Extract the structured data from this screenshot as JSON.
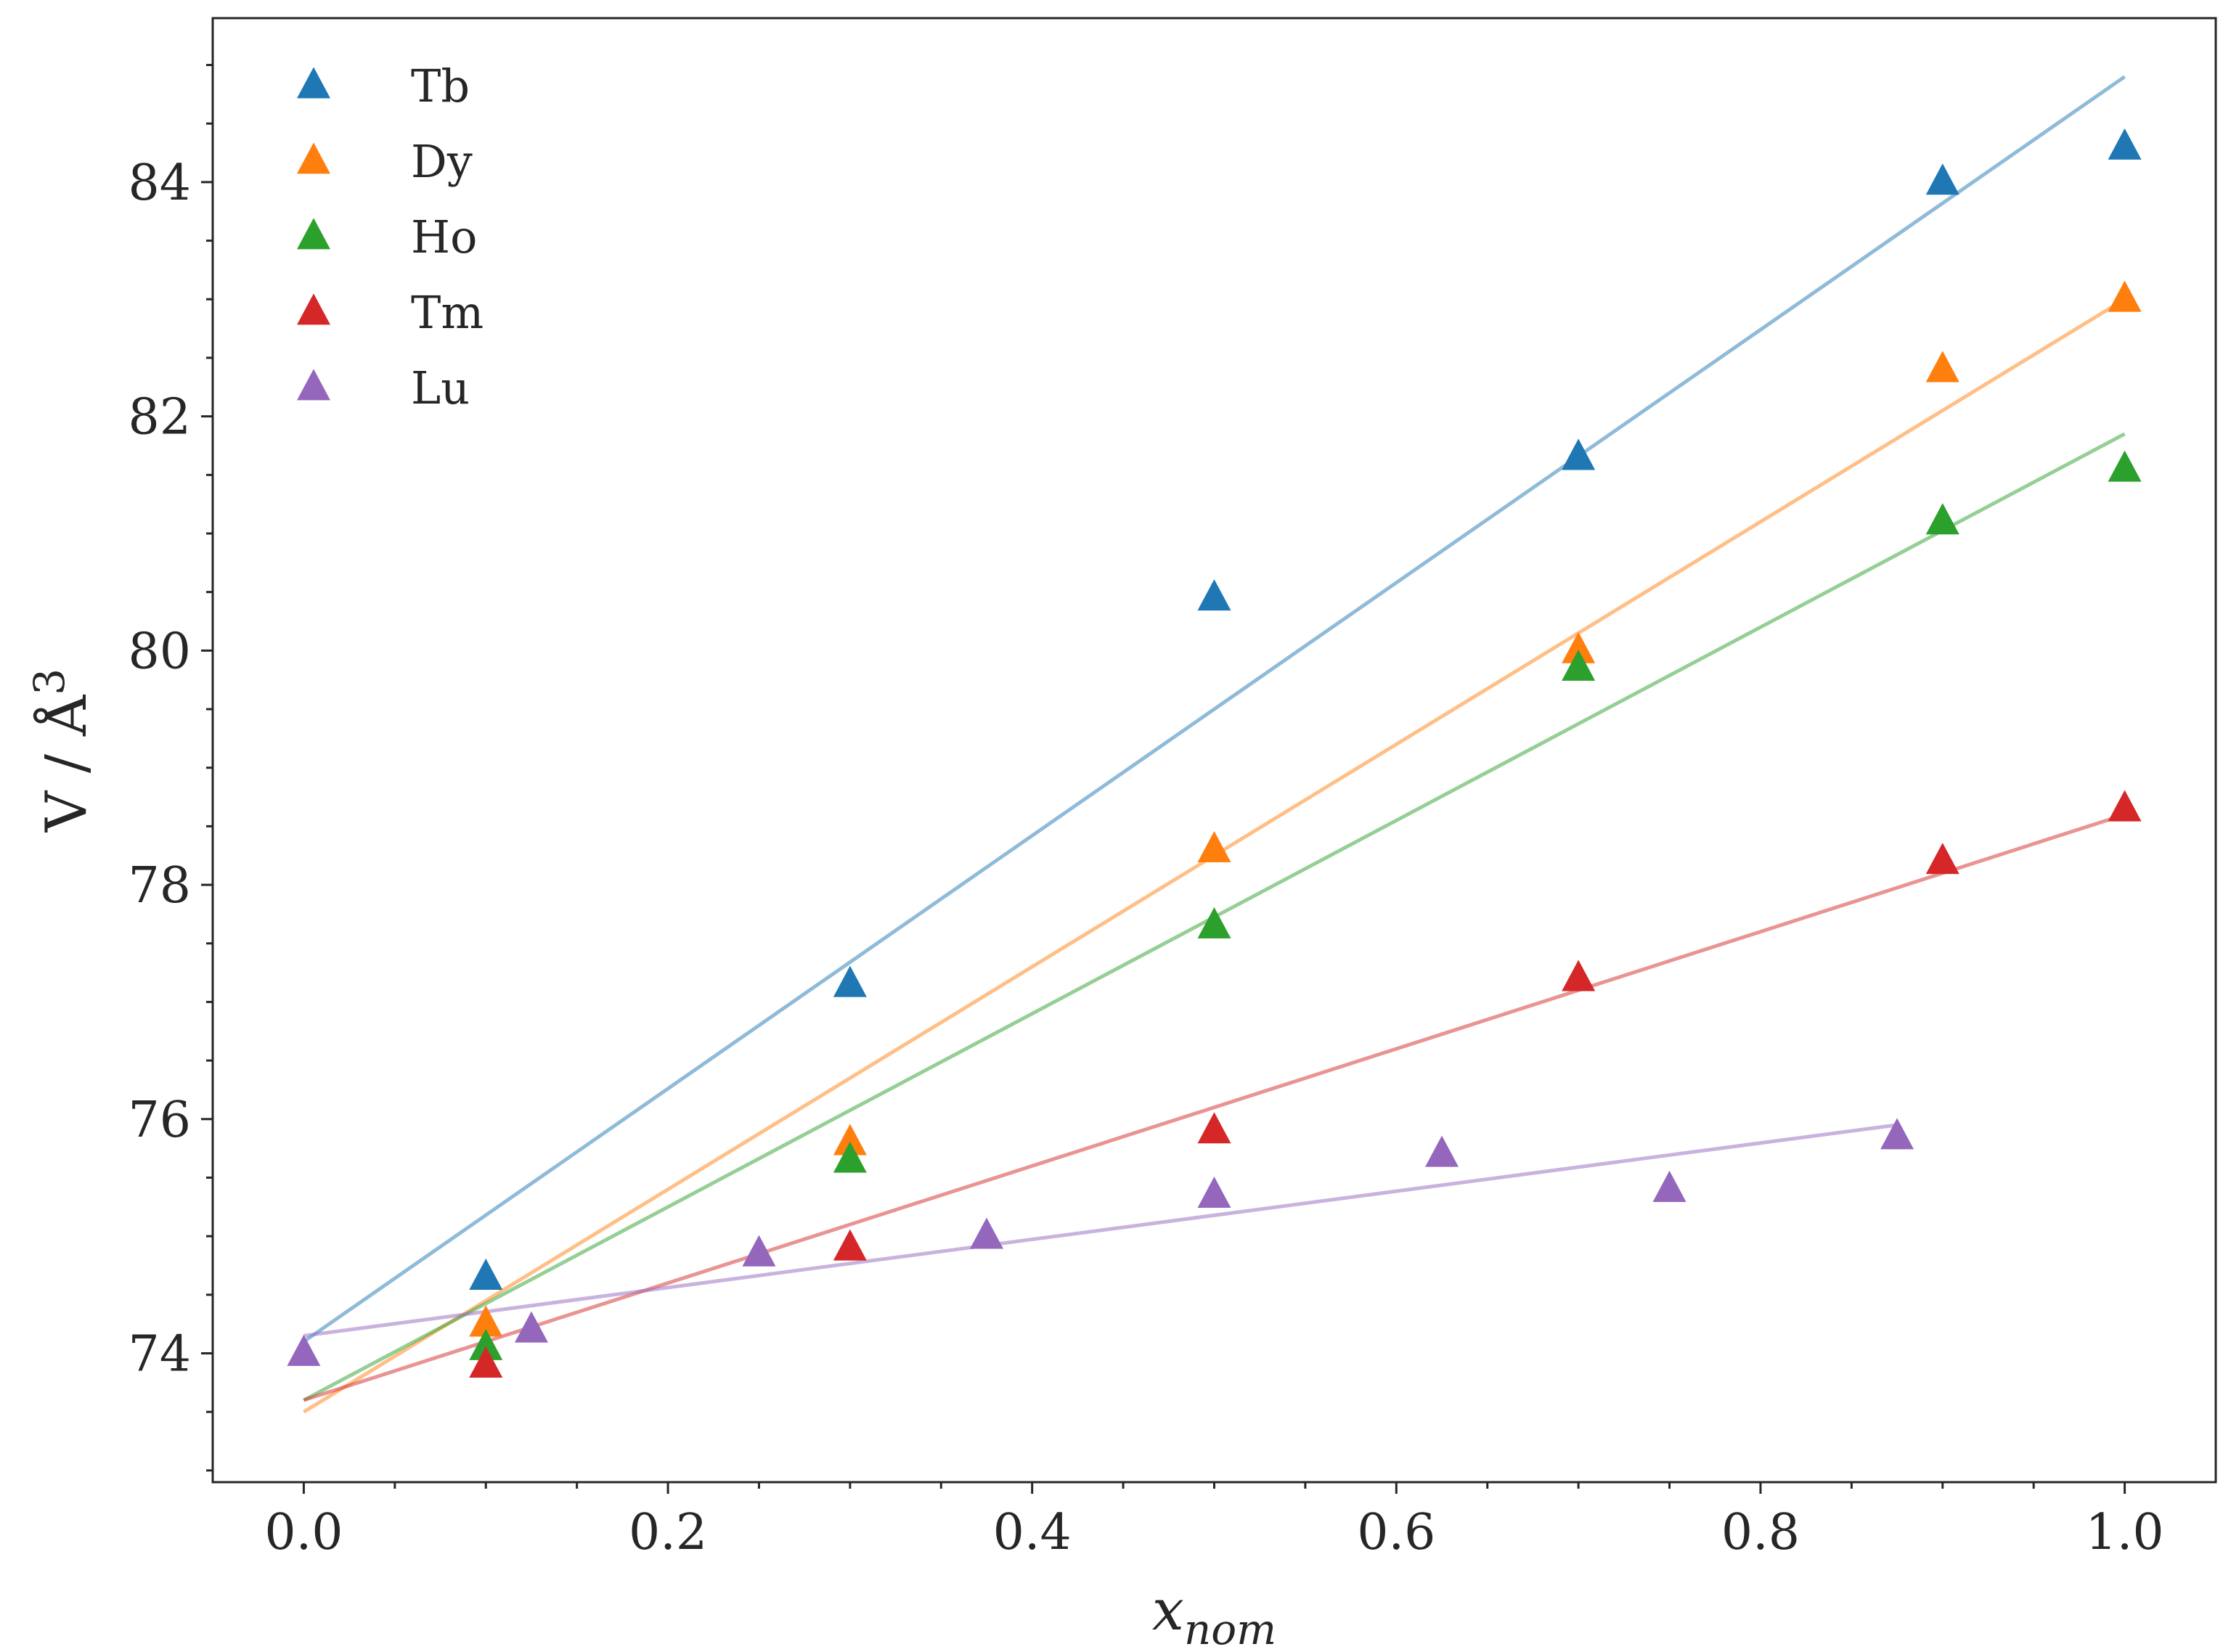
{
  "chart_data": {
    "type": "scatter",
    "title": "",
    "xlabel": "x",
    "xlabel_sub": "nom",
    "ylabel": "V / Å",
    "ylabel_sup": "3",
    "xlim": [
      -0.05,
      1.05
    ],
    "ylim": [
      72.9,
      85.4
    ],
    "xticks": [
      0.0,
      0.2,
      0.4,
      0.6,
      0.8,
      1.0
    ],
    "xtick_labels": [
      "0.0",
      "0.2",
      "0.4",
      "0.6",
      "0.8",
      "1.0"
    ],
    "yticks": [
      74,
      76,
      78,
      80,
      82,
      84
    ],
    "ytick_labels": [
      "74",
      "76",
      "78",
      "80",
      "82",
      "84"
    ],
    "legend_position": "top-left",
    "grid": false,
    "series": [
      {
        "name": "Tb",
        "color": "#1f77b4",
        "x": [
          0.1,
          0.3,
          0.5,
          0.7,
          0.9,
          1.0
        ],
        "y": [
          74.65,
          77.15,
          80.45,
          81.65,
          84.0,
          84.3
        ],
        "fit": {
          "x": [
            0.0,
            1.0
          ],
          "y": [
            74.1,
            84.9
          ]
        }
      },
      {
        "name": "Dy",
        "color": "#ff7f0e",
        "x": [
          0.1,
          0.3,
          0.5,
          0.7,
          0.9,
          1.0
        ],
        "y": [
          74.25,
          75.8,
          78.3,
          80.0,
          82.4,
          83.0
        ],
        "fit": {
          "x": [
            0.0,
            1.0
          ],
          "y": [
            73.5,
            83.0
          ]
        }
      },
      {
        "name": "Ho",
        "color": "#2ca02c",
        "x": [
          0.1,
          0.3,
          0.5,
          0.7,
          0.9,
          1.0
        ],
        "y": [
          74.05,
          75.65,
          77.65,
          79.85,
          81.1,
          81.55
        ],
        "fit": {
          "x": [
            0.0,
            1.0
          ],
          "y": [
            73.6,
            81.85
          ]
        }
      },
      {
        "name": "Tm",
        "color": "#d62728",
        "x": [
          0.1,
          0.3,
          0.5,
          0.7,
          0.9,
          1.0
        ],
        "y": [
          73.9,
          74.9,
          75.9,
          77.2,
          78.2,
          78.65
        ],
        "fit": {
          "x": [
            0.0,
            1.0
          ],
          "y": [
            73.6,
            78.6
          ]
        }
      },
      {
        "name": "Lu",
        "color": "#9467bd",
        "x": [
          0.0,
          0.125,
          0.25,
          0.375,
          0.5,
          0.625,
          0.75,
          0.875
        ],
        "y": [
          74.0,
          74.2,
          74.85,
          75.0,
          75.35,
          75.7,
          75.4,
          75.85
        ],
        "fit": {
          "x": [
            0.0,
            0.875
          ],
          "y": [
            74.15,
            75.95
          ]
        }
      }
    ]
  }
}
